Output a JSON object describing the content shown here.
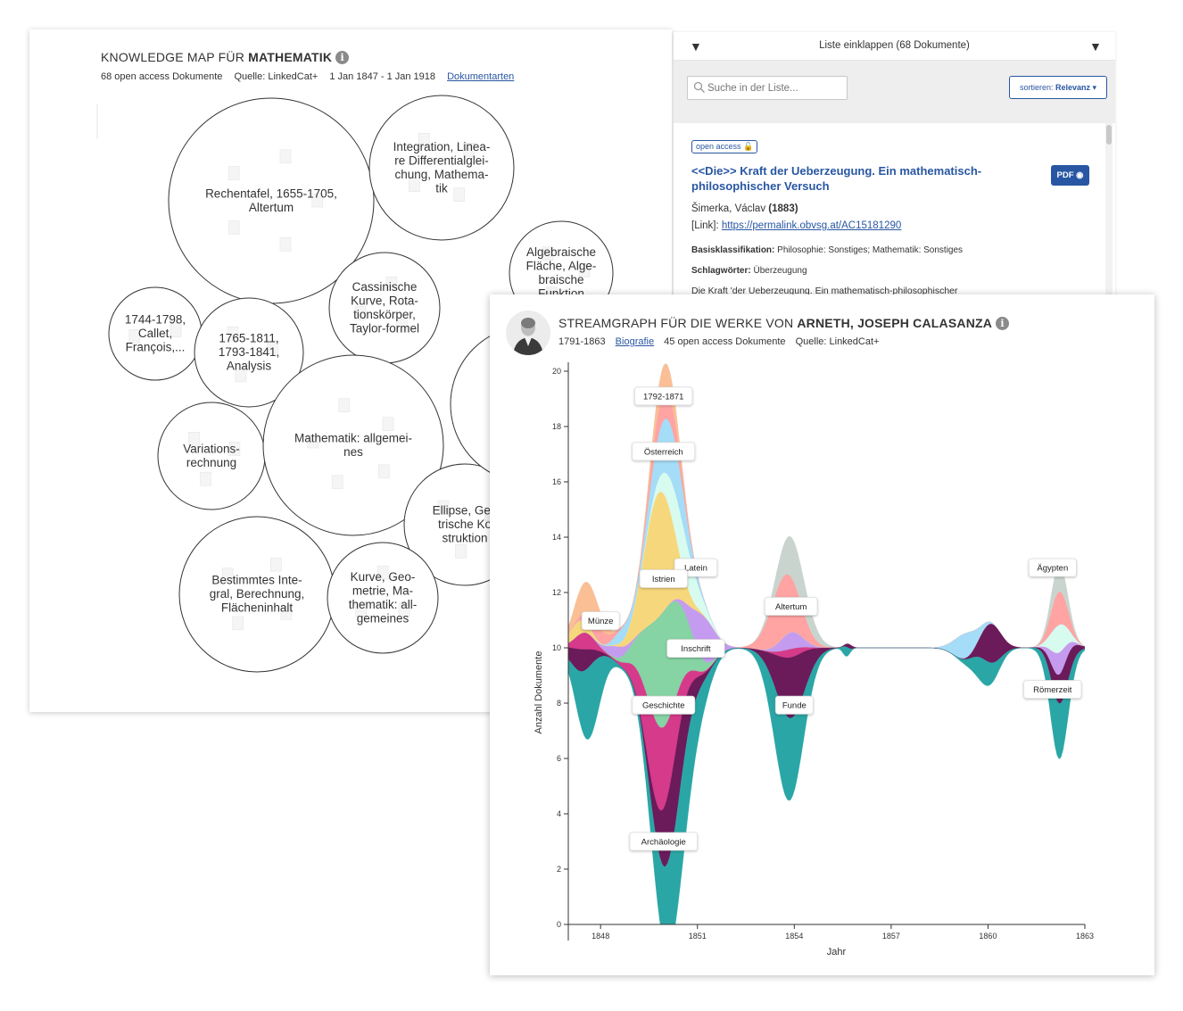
{
  "knowledge_map": {
    "title_prefix": "KNOWLEDGE MAP FÜR ",
    "title_topic": "MATHEMATIK",
    "meta": {
      "count": "68 open access Dokumente",
      "source": "Quelle: LinkedCat+",
      "timespan": "1 Jan 1847 - 1 Jan 1918",
      "doctypes_link": "Dokumentarten"
    },
    "bubbles": [
      {
        "lines": [
          "Rechentafel, 1655-1705,",
          "Altertum"
        ]
      },
      {
        "lines": [
          "Integration, Linea-",
          "re Differentialglei-",
          "chung, Mathema-",
          "tik"
        ]
      },
      {
        "lines": [
          "Algebraische",
          "Fläche, Alge-",
          "braische",
          "Funktion"
        ]
      },
      {
        "lines": [
          "1744-1798,",
          "Callet,",
          "François,..."
        ]
      },
      {
        "lines": [
          "1765-1811,",
          "1793-1841,",
          "Analysis"
        ]
      },
      {
        "lines": [
          "Cassinische",
          "Kurve, Rota-",
          "tionskörper,",
          "Taylor-formel"
        ]
      },
      {
        "lines": [
          "Variations-",
          "rechnung"
        ]
      },
      {
        "lines": [
          "Mathematik: allgemei-",
          "nes"
        ]
      },
      {
        "lines": [
          "Ellipse, Geo",
          "trische Ko",
          "struktion"
        ]
      },
      {
        "lines": []
      },
      {
        "lines": [
          "Bestimmtes Inte-",
          "gral, Berechnung,",
          "Flächeninhalt"
        ]
      },
      {
        "lines": [
          "Kurve, Geo-",
          "metrie, Ma-",
          "thematik: all-",
          "gemeines"
        ]
      }
    ]
  },
  "list": {
    "toggle_label": "Liste einklappen (68 Dokumente)",
    "search_placeholder": "Suche in der Liste...",
    "sort_prefix": "sortieren: ",
    "sort_value": "Relevanz",
    "document": {
      "badge": "open access",
      "title": "<<Die>> Kraft der Ueberzeugung. Ein mathematisch-philosophischer Versuch",
      "pdf_label": "PDF",
      "author": "Šimerka, Václav",
      "year": "(1883)",
      "link_prefix": "[Link]: ",
      "link_url": "https://permalink.obvsg.at/AC15181290",
      "class_label": "Basisklassifikation: ",
      "class_value": "Philosophie: Sonstiges; Mathematik: Sonstiges",
      "keywords_label": "Schlagwörter: ",
      "keywords_value": "Überzeugung",
      "abstract": "Die Kraft 'der Ueberzeugung. Ein mathematisch-philosophischer"
    }
  },
  "streamgraph": {
    "title_prefix": "STREAMGRAPH FÜR DIE WERKE VON ",
    "title_author": "ARNETH, JOSEPH CALASANZA",
    "meta": {
      "lifespan": "1791-1863",
      "bio_link": "Biografie",
      "count": "45 open access Dokumente",
      "source": "Quelle: LinkedCat+"
    }
  },
  "chart_data": {
    "type": "area",
    "xlabel": "Jahr",
    "ylabel": "Anzahl Dokumente",
    "x_ticks": [
      "1848",
      "1851",
      "1854",
      "1857",
      "1860",
      "1863"
    ],
    "y_ticks": [
      "0",
      "2",
      "4",
      "6",
      "8",
      "10",
      "12",
      "14",
      "16",
      "18",
      "20"
    ],
    "ylim": [
      0,
      20
    ],
    "xlim": [
      1847,
      1863
    ],
    "stream_labels": [
      "1792-1871",
      "Österreich",
      "Latein",
      "Istrien",
      "Münze",
      "Altertum",
      "Inschrift",
      "Geschichte",
      "Funde",
      "Archäologie",
      "Ägypten",
      "Römerzeit"
    ],
    "series_colors": [
      "#2aa6a6",
      "#6b1a5a",
      "#d63a8b",
      "#86d3a3",
      "#c59bf0",
      "#f7d77b",
      "#d8fbf0",
      "#a5dcf7",
      "#ffa3a3",
      "#fbbf95",
      "#c9d4cf"
    ],
    "approx_total_peaks": [
      {
        "x": 1850,
        "y": 20
      },
      {
        "x": 1853.9,
        "y": 14.6
      },
      {
        "x": 1862.2,
        "y": 13.5
      }
    ]
  }
}
